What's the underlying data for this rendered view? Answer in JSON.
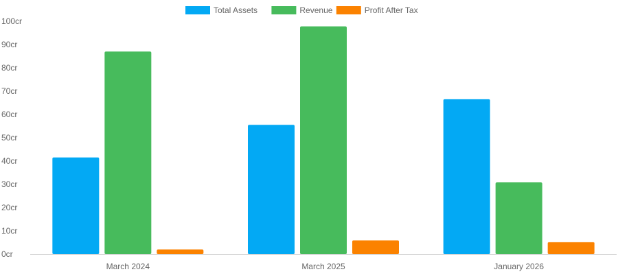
{
  "chart_data": {
    "type": "bar",
    "title": "",
    "xlabel": "",
    "ylabel": "",
    "categories": [
      "March 2024",
      "March 2025",
      "January 2026"
    ],
    "series": [
      {
        "name": "Total Assets",
        "color": "#03a9f4",
        "values": [
          41.5,
          55.5,
          66.5
        ]
      },
      {
        "name": "Revenue",
        "color": "#47bb5c",
        "values": [
          87.0,
          97.8,
          30.8
        ]
      },
      {
        "name": "Profit After Tax",
        "color": "#fb8200",
        "values": [
          2.0,
          5.9,
          5.2
        ]
      }
    ],
    "ylim": [
      0,
      100
    ],
    "yticks": [
      0,
      10,
      20,
      30,
      40,
      50,
      60,
      70,
      80,
      90,
      100
    ],
    "ytick_labels": [
      "0cr",
      "10cr",
      "20cr",
      "30cr",
      "40cr",
      "50cr",
      "60cr",
      "70cr",
      "80cr",
      "90cr",
      "100cr"
    ],
    "grid": false,
    "legend": {
      "position": "top-center"
    }
  }
}
